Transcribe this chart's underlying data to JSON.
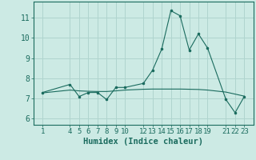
{
  "xlabel": "Humidex (Indice chaleur)",
  "background_color": "#cceae4",
  "line_color": "#1a6b5e",
  "grid_color": "#b0d4ce",
  "x_raw": [
    1,
    4,
    5,
    6,
    7,
    8,
    9,
    10,
    12,
    13,
    14,
    15,
    16,
    17,
    18,
    19,
    21,
    22,
    23
  ],
  "y_raw": [
    7.3,
    7.7,
    7.1,
    7.3,
    7.3,
    6.95,
    7.55,
    7.55,
    7.75,
    8.4,
    9.45,
    11.35,
    11.1,
    9.4,
    10.2,
    9.5,
    6.95,
    6.3,
    7.1
  ],
  "y_smooth": [
    7.28,
    7.42,
    7.38,
    7.36,
    7.35,
    7.35,
    7.38,
    7.42,
    7.46,
    7.47,
    7.47,
    7.47,
    7.47,
    7.46,
    7.45,
    7.42,
    7.32,
    7.22,
    7.12
  ],
  "xtick_pos": [
    1,
    4,
    5,
    6,
    7,
    8,
    9,
    10,
    12,
    13,
    14,
    15,
    16,
    17,
    18,
    19,
    21,
    22,
    23
  ],
  "xtick_labels": [
    "1",
    "4",
    "5",
    "6",
    "7",
    "8",
    "9",
    "10",
    "12",
    "13",
    "14",
    "15",
    "16",
    "17",
    "18",
    "19",
    "21",
    "22",
    "23"
  ],
  "ytick_values": [
    6,
    7,
    8,
    9,
    10,
    11
  ],
  "xlim": [
    0.0,
    24.0
  ],
  "ylim": [
    5.7,
    11.8
  ],
  "fontsize": 6.5
}
